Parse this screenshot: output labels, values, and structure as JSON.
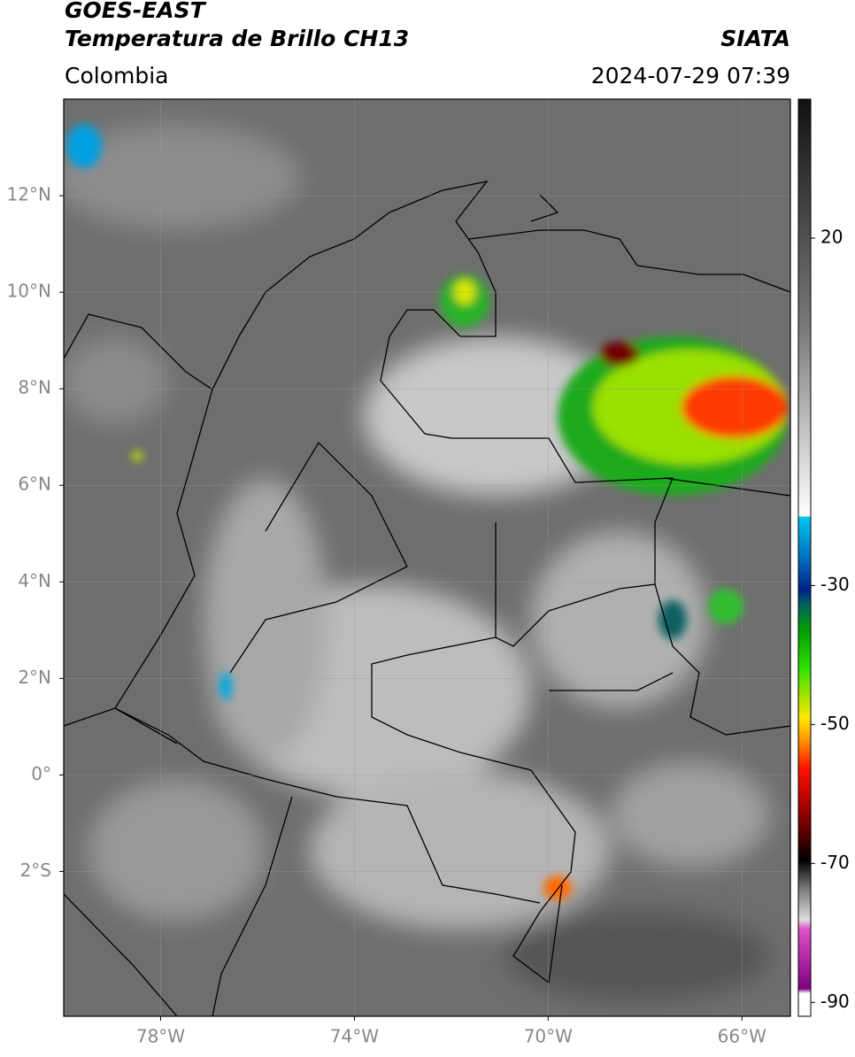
{
  "header": {
    "title": "GOES-EAST",
    "subtitle": "Temperatura de Brillo CH13",
    "region": "Colombia",
    "source": "SIATA",
    "datetime": "2024-07-29 07:39"
  },
  "map": {
    "xlim": [
      -80,
      -65
    ],
    "ylim": [
      -5,
      14
    ],
    "xticks": [
      {
        "value": -78,
        "label": "78°W"
      },
      {
        "value": -74,
        "label": "74°W"
      },
      {
        "value": -70,
        "label": "70°W"
      },
      {
        "value": -66,
        "label": "66°W"
      }
    ],
    "yticks": [
      {
        "value": 12,
        "label": "12°N"
      },
      {
        "value": 10,
        "label": "10°N"
      },
      {
        "value": 8,
        "label": "8°N"
      },
      {
        "value": 6,
        "label": "6°N"
      },
      {
        "value": 4,
        "label": "4°N"
      },
      {
        "value": 2,
        "label": "2°N"
      },
      {
        "value": 0,
        "label": "0°"
      },
      {
        "value": -2,
        "label": "2°S"
      }
    ]
  },
  "colorbar": {
    "clim": [
      -92,
      40
    ],
    "ticks": [
      20,
      -30,
      -50,
      -70,
      -90
    ]
  }
}
